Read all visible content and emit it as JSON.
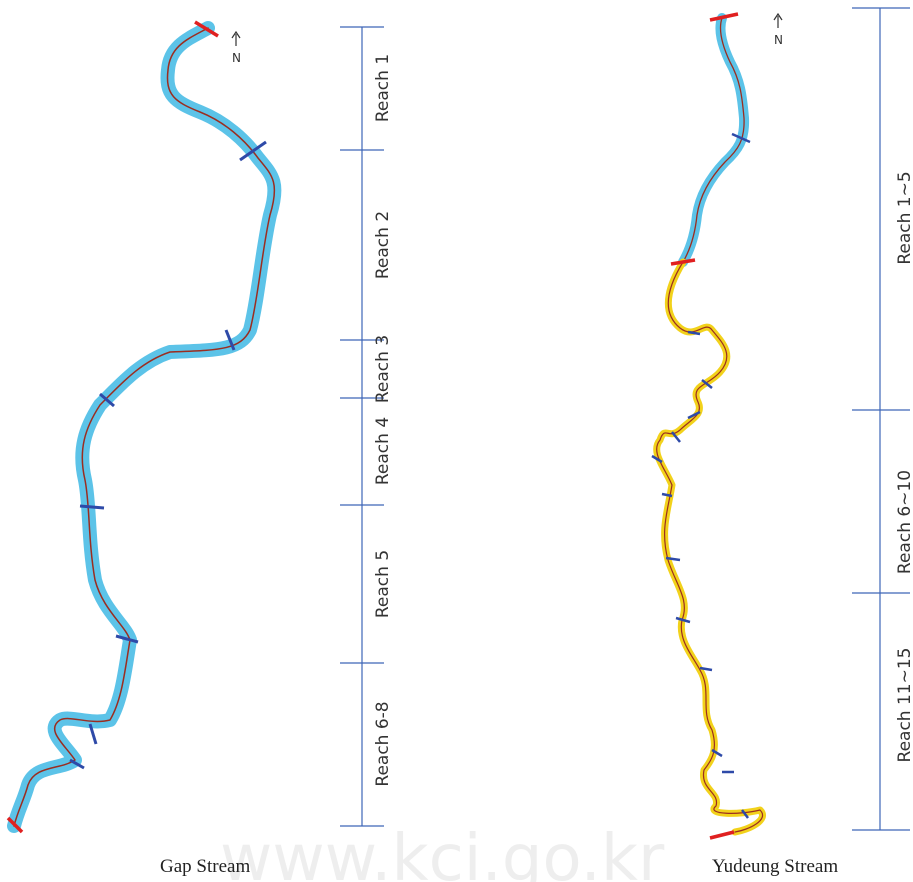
{
  "watermark": "www.kci.go.kr",
  "colors": {
    "channel_fill": "#5cc3e8",
    "centerline": "#9b2d20",
    "yellow_fill": "#f2d21b",
    "scale_line": "#3e66b8",
    "section_mark": "#2e4aa8",
    "end_mark": "#e02020"
  },
  "panels": [
    {
      "caption": "Gap Stream",
      "north": "N",
      "reaches": [
        "Reach 1",
        "Reach 2",
        "Reach 3",
        "Reach 4",
        "Reach 5",
        "Reach 6-8"
      ]
    },
    {
      "caption": "Yudeung Stream",
      "north": "N",
      "reaches": [
        "Reach 1~5",
        "Reach 6~10",
        "Reach 11~15"
      ]
    }
  ]
}
